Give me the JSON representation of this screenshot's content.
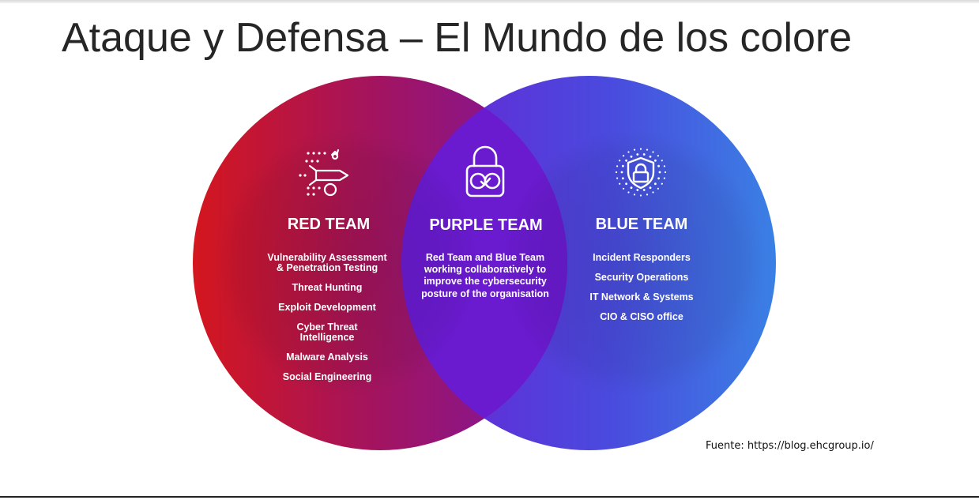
{
  "slide": {
    "title": "Ataque y Defensa – El Mundo de los colore",
    "source_note": "Fuente: https://blog.ehcgroup.io/"
  },
  "colors": {
    "red_team_gradient_start": "#d4161e",
    "red_team_gradient_mid": "#a01262",
    "purple_team": "#6a1bd0",
    "blue_team_gradient_start": "#5a2ad8",
    "blue_team_gradient_end": "#3c7ce2",
    "text": "#ffffff",
    "title_text": "#262626"
  },
  "red_team": {
    "icon": "bomb-missile-icon",
    "heading": "RED TEAM",
    "items": [
      "Vulnerability Assessment\n& Penetration Testing",
      "Threat Hunting",
      "Exploit Development",
      "Cyber Threat\nIntelligence",
      "Malware Analysis",
      "Social Engineering"
    ]
  },
  "purple_team": {
    "icon": "padlock-linked-rings-icon",
    "heading": "PURPLE TEAM",
    "description": "Red Team and Blue Team working collaboratively to improve the cybersecurity posture of the organisation"
  },
  "blue_team": {
    "icon": "shield-lock-icon",
    "heading": "BLUE TEAM",
    "items": [
      "Incident Responders",
      "Security Operations",
      "IT Network & Systems",
      "CIO & CISO office"
    ]
  }
}
